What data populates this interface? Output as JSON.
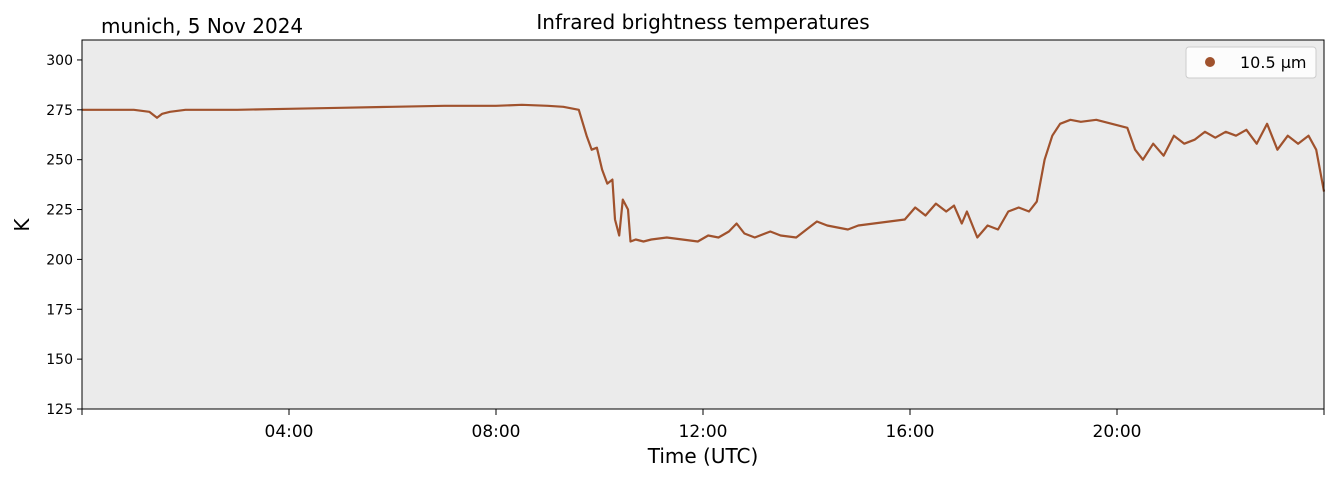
{
  "header": {
    "location_date": "munich, 5 Nov 2024"
  },
  "chart_data": {
    "type": "line",
    "title": "Infrared brightness temperatures",
    "xlabel": "Time (UTC)",
    "ylabel": "K",
    "xlim_hours": [
      0,
      24
    ],
    "ylim": [
      125,
      310
    ],
    "x_ticks": [
      {
        "hour": 4,
        "label": "04:00"
      },
      {
        "hour": 8,
        "label": "08:00"
      },
      {
        "hour": 12,
        "label": "12:00"
      },
      {
        "hour": 16,
        "label": "16:00"
      },
      {
        "hour": 20,
        "label": "20:00"
      }
    ],
    "y_ticks": [
      125,
      150,
      175,
      200,
      225,
      250,
      275,
      300
    ],
    "grid": false,
    "legend_position": "top-right",
    "plot_background": "#ebebeb",
    "series": [
      {
        "name": "10.5 µm",
        "color": "#a0522d",
        "x_hours": [
          0.0,
          0.5,
          1.0,
          1.3,
          1.45,
          1.55,
          1.7,
          2.0,
          3.0,
          4.0,
          5.0,
          6.0,
          7.0,
          8.0,
          8.5,
          9.0,
          9.3,
          9.6,
          9.75,
          9.85,
          9.95,
          10.05,
          10.15,
          10.25,
          10.3,
          10.38,
          10.45,
          10.55,
          10.6,
          10.7,
          10.85,
          11.0,
          11.3,
          11.6,
          11.9,
          12.1,
          12.3,
          12.5,
          12.65,
          12.8,
          13.0,
          13.3,
          13.5,
          13.8,
          14.0,
          14.2,
          14.4,
          14.6,
          14.8,
          15.0,
          15.3,
          15.6,
          15.9,
          16.1,
          16.3,
          16.5,
          16.7,
          16.85,
          17.0,
          17.1,
          17.3,
          17.5,
          17.7,
          17.9,
          18.1,
          18.3,
          18.45,
          18.6,
          18.75,
          18.9,
          19.1,
          19.3,
          19.6,
          19.9,
          20.2,
          20.35,
          20.5,
          20.7,
          20.9,
          21.1,
          21.3,
          21.5,
          21.7,
          21.9,
          22.1,
          22.3,
          22.5,
          22.7,
          22.9,
          23.1,
          23.3,
          23.5,
          23.7,
          23.85,
          24.0
        ],
        "values": [
          275,
          275,
          275,
          274,
          271,
          273,
          274,
          275,
          275,
          275.5,
          276,
          276.5,
          277,
          277,
          277.5,
          277,
          276.5,
          275,
          262,
          255,
          256,
          245,
          238,
          240,
          220,
          212,
          230,
          225,
          209,
          210,
          209,
          210,
          211,
          210,
          209,
          212,
          211,
          214,
          218,
          213,
          211,
          214,
          212,
          211,
          215,
          219,
          217,
          216,
          215,
          217,
          218,
          219,
          220,
          226,
          222,
          228,
          224,
          227,
          218,
          224,
          211,
          217,
          215,
          224,
          226,
          224,
          229,
          250,
          262,
          268,
          270,
          269,
          270,
          268,
          266,
          255,
          250,
          258,
          252,
          262,
          258,
          260,
          264,
          261,
          264,
          262,
          265,
          258,
          268,
          255,
          262,
          258,
          262,
          255,
          234
        ]
      }
    ]
  }
}
